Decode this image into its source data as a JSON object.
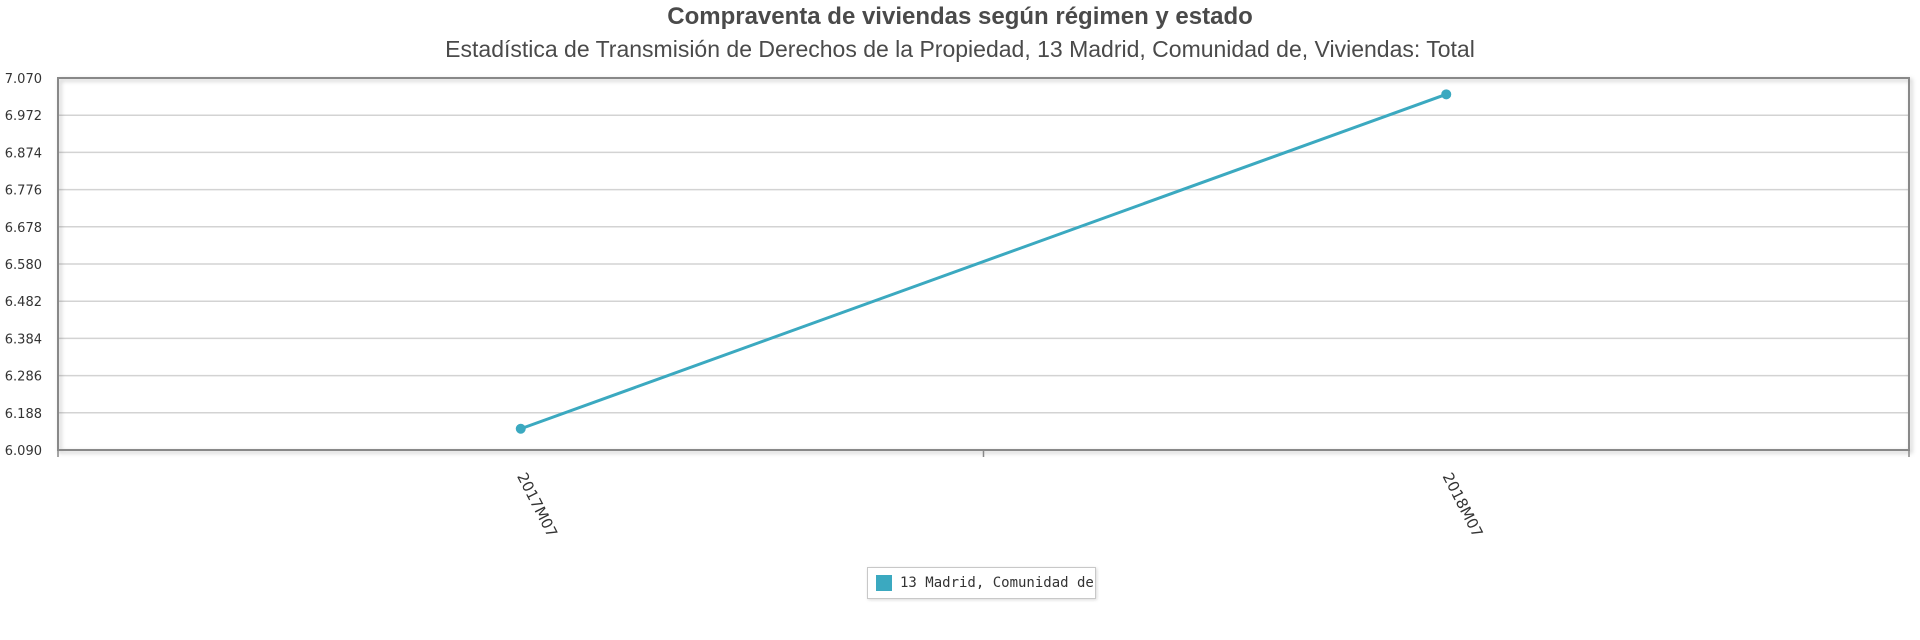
{
  "chart_data": {
    "type": "line",
    "title": "Compraventa de viviendas según régimen y estado",
    "subtitle": "Estadística de Transmisión de Derechos de la Propiedad, 13 Madrid, Comunidad de, Viviendas: Total",
    "categories": [
      "2017M07",
      "2018M07"
    ],
    "series": [
      {
        "name": "13 Madrid, Comunidad de",
        "values": [
          6146,
          7027
        ],
        "color": "#3ba9c0"
      }
    ],
    "yticks": [
      "6.090",
      "6.188",
      "6.286",
      "6.384",
      "6.482",
      "6.580",
      "6.678",
      "6.776",
      "6.874",
      "6.972",
      "7.070"
    ],
    "ylim": [
      6090,
      7070
    ],
    "grid": true,
    "legend_position": "bottom"
  }
}
